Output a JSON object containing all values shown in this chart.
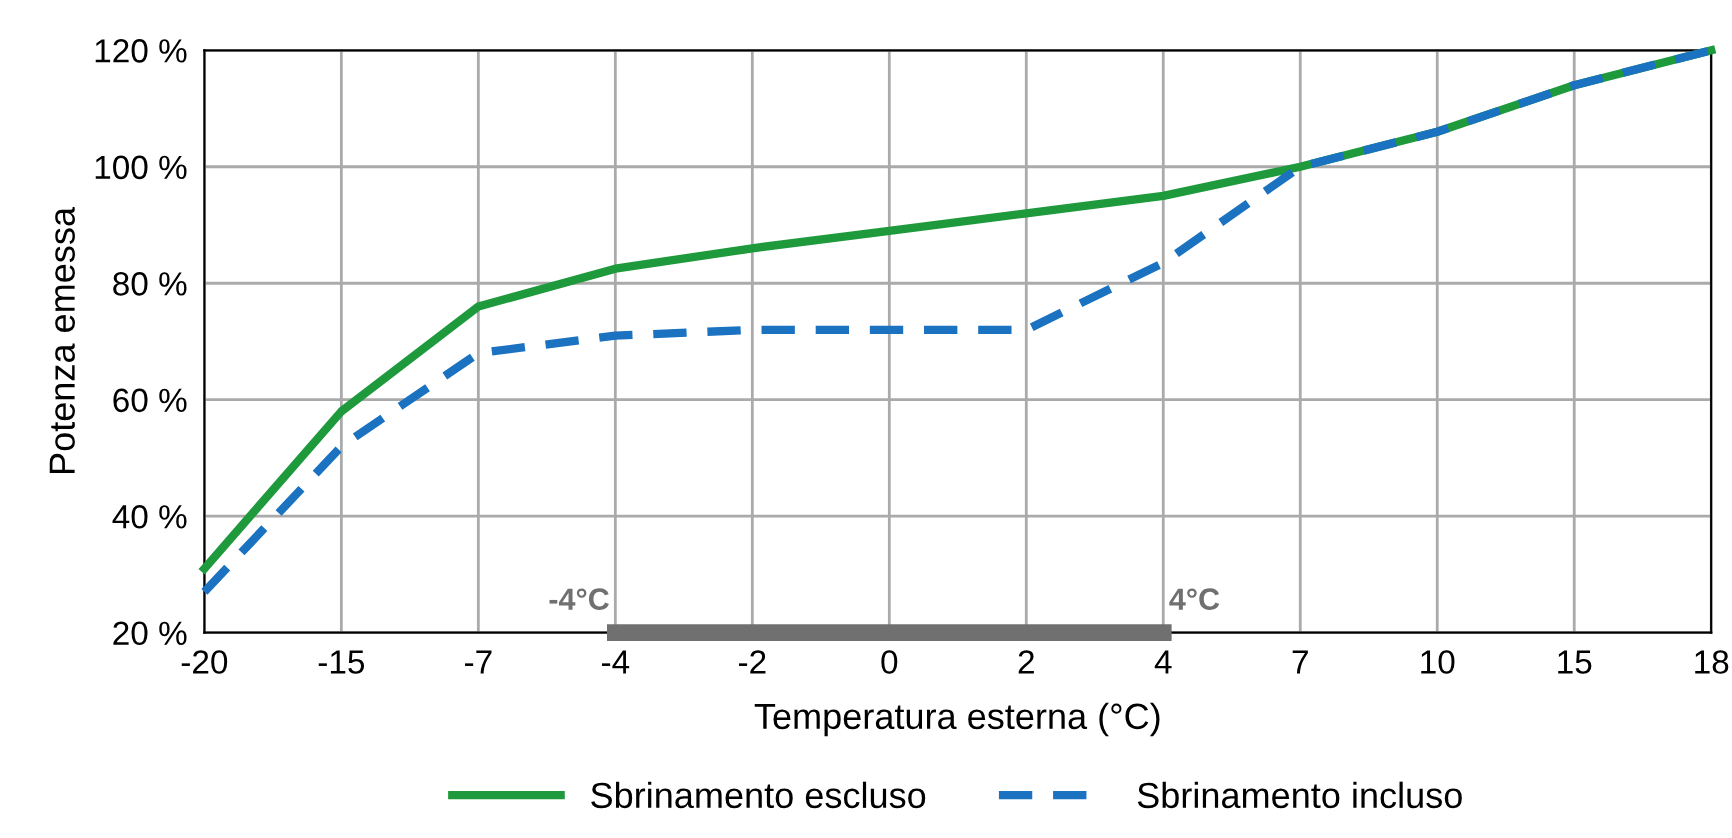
{
  "chart_data": {
    "type": "line",
    "xlabel": "Temperatura esterna (°C)",
    "ylabel": "Potenza emessa",
    "categories": [
      "-20",
      "-15",
      "-7",
      "-4",
      "-2",
      "0",
      "2",
      "4",
      "7",
      "10",
      "15",
      "18"
    ],
    "series": [
      {
        "name": "Sbrinamento escluso",
        "color": "#1e9a3c",
        "line_style": "solid",
        "values": [
          31,
          58,
          76,
          82.5,
          86,
          89,
          92,
          95,
          100,
          106,
          114,
          120
        ]
      },
      {
        "name": "Sbrinamento incluso",
        "color": "#1a72c0",
        "line_style": "dashed",
        "values": [
          27,
          52,
          68,
          71,
          72,
          72,
          72,
          83.5,
          100,
          106,
          114,
          120
        ]
      },
      {
        "color": "#707070",
        "line_style": "solid",
        "values": [
          null,
          null,
          null,
          20,
          20,
          20,
          20,
          20,
          null,
          null,
          null,
          null
        ]
      }
    ],
    "ylim": [
      20,
      120
    ],
    "yticks": [
      {
        "value": 20,
        "label": "20 %"
      },
      {
        "value": 40,
        "label": "40 %"
      },
      {
        "value": 60,
        "label": "60 %"
      },
      {
        "value": 80,
        "label": "80 %"
      },
      {
        "value": 100,
        "label": "100 %"
      },
      {
        "value": 120,
        "label": "120 %"
      }
    ],
    "annotations": [
      {
        "text": "-4°C",
        "x": "-4",
        "y": 20
      },
      {
        "text": "4°C",
        "x": "4",
        "y": 20
      }
    ],
    "grid": true,
    "legend": "bottom",
    "marker": "none"
  }
}
